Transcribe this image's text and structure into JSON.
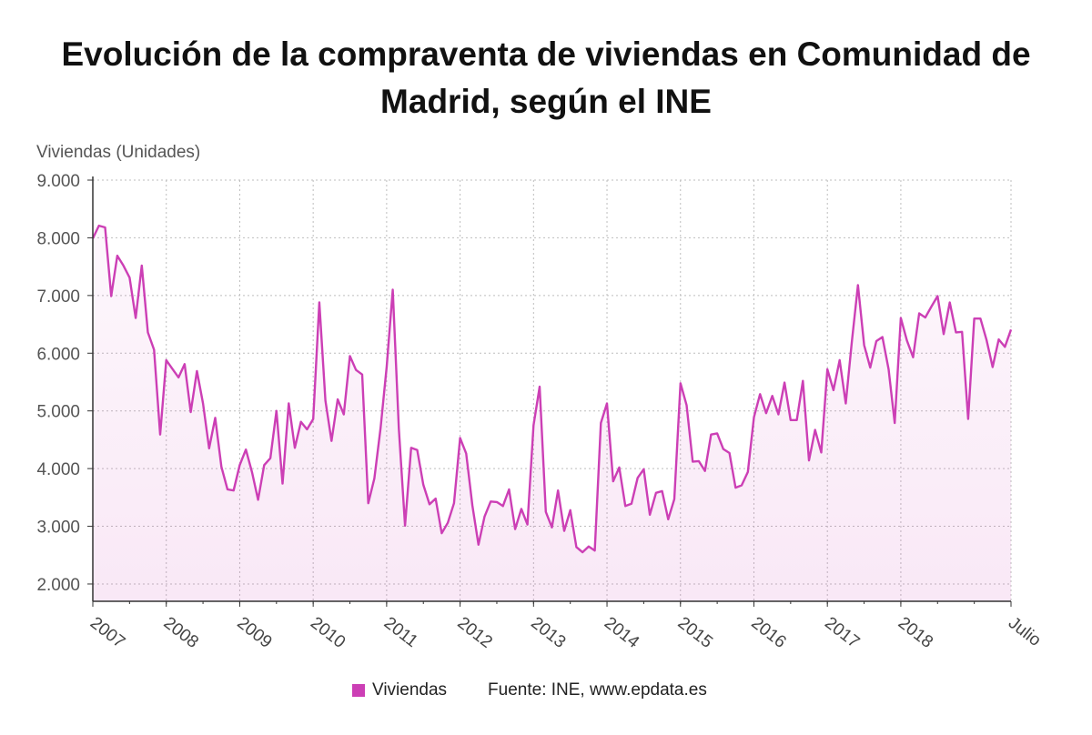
{
  "chart_data": {
    "type": "area",
    "title": "Evolución de la compraventa de viviendas en Comunidad de Madrid, según el INE",
    "ylabel": "Viviendas (Unidades)",
    "xlabel": "",
    "x_tick_labels": [
      "2007",
      "2008",
      "2009",
      "2010",
      "2011",
      "2012",
      "2013",
      "2014",
      "2015",
      "2016",
      "2017",
      "2018",
      "Julio"
    ],
    "y_tick_labels": [
      "9.000",
      "8.000",
      "7.000",
      "6.000",
      "5.000",
      "4.000",
      "3.000",
      "2.000"
    ],
    "y_ticks": [
      9000,
      8000,
      7000,
      6000,
      5000,
      4000,
      3000,
      2000
    ],
    "ylim": [
      1700,
      9000
    ],
    "x_start": "2007-01",
    "x_end": "2019-07",
    "grid": true,
    "legend_position": "bottom",
    "series": [
      {
        "name": "Viviendas",
        "color": "#cc3fb5",
        "values": [
          7990,
          8210,
          8180,
          6990,
          7690,
          7520,
          7310,
          6610,
          7520,
          6360,
          6060,
          4590,
          5880,
          5730,
          5580,
          5810,
          4980,
          5690,
          5130,
          4350,
          4880,
          4030,
          3640,
          3620,
          4060,
          4330,
          3940,
          3460,
          4060,
          4180,
          5000,
          3740,
          5130,
          4360,
          4810,
          4680,
          4860,
          6880,
          5180,
          4480,
          5200,
          4940,
          5950,
          5710,
          5630,
          3400,
          3830,
          4700,
          5760,
          7100,
          4690,
          3010,
          4360,
          4320,
          3720,
          3380,
          3480,
          2880,
          3060,
          3400,
          4530,
          4260,
          3360,
          2680,
          3170,
          3430,
          3420,
          3350,
          3640,
          2950,
          3300,
          3030,
          4750,
          5420,
          3250,
          2980,
          3620,
          2920,
          3280,
          2640,
          2550,
          2650,
          2580,
          4790,
          5130,
          3780,
          4020,
          3350,
          3390,
          3840,
          3990,
          3200,
          3580,
          3610,
          3120,
          3470,
          5480,
          5100,
          4120,
          4130,
          3960,
          4590,
          4610,
          4340,
          4270,
          3670,
          3710,
          3940,
          4890,
          5290,
          4960,
          5260,
          4940,
          5490,
          4840,
          4840,
          5520,
          4140,
          4670,
          4280,
          5720,
          5360,
          5880,
          5130,
          6200,
          7180,
          6140,
          5750,
          6210,
          6280,
          5720,
          4790,
          6610,
          6220,
          5930,
          6690,
          6620,
          6810,
          6990,
          6330,
          6880,
          6360,
          6370,
          4860,
          6600,
          6600,
          6230,
          5760,
          6240,
          6110,
          6410
        ]
      }
    ],
    "source": "Fuente: INE, www.epdata.es"
  }
}
